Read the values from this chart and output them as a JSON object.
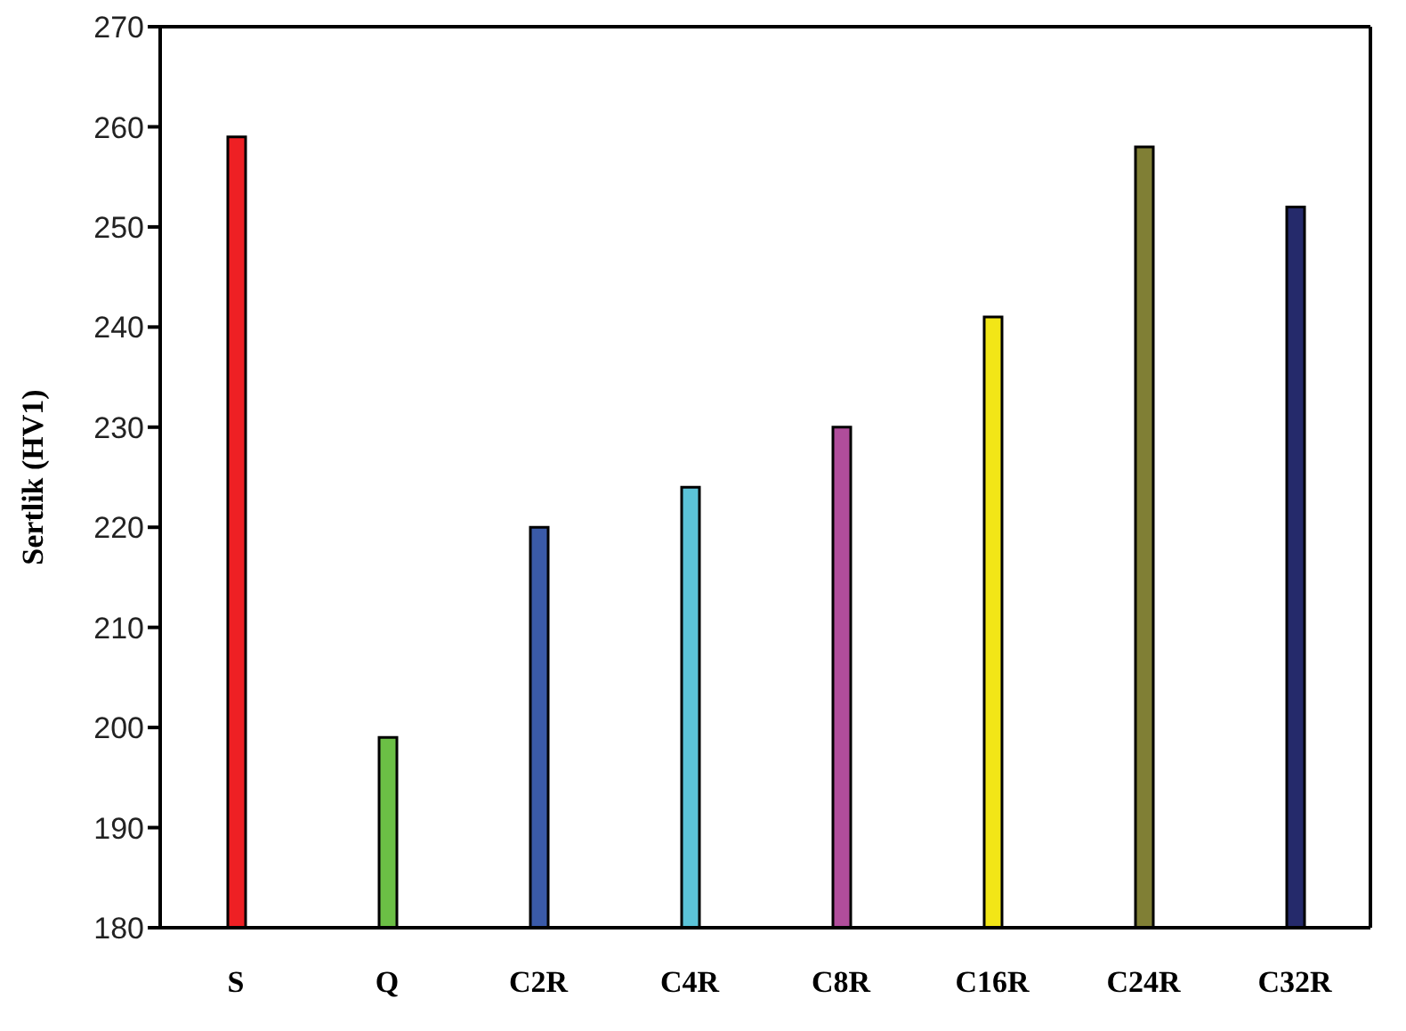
{
  "chart_data": {
    "type": "bar",
    "ylabel": "Sertlik (HV1)",
    "categories": [
      "S",
      "Q",
      "C2R",
      "C4R",
      "C8R",
      "C16R",
      "C24R",
      "C32R"
    ],
    "values": [
      259,
      199,
      220,
      224,
      230,
      241,
      258,
      252
    ],
    "colors": [
      "#ee2024",
      "#6bbf45",
      "#3a5aa8",
      "#5bc3d8",
      "#b04d9b",
      "#f2e617",
      "#807f35",
      "#252a6b"
    ],
    "ylim": [
      180,
      270
    ],
    "yticks": [
      180,
      190,
      200,
      210,
      220,
      230,
      240,
      250,
      260,
      270
    ],
    "grid": false
  }
}
